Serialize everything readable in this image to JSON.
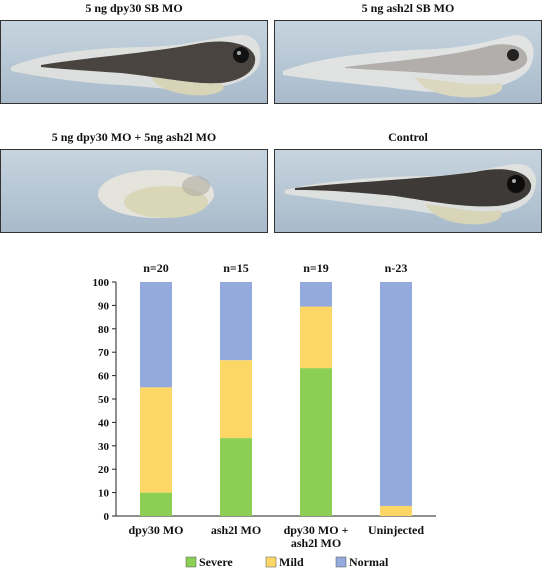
{
  "panels": [
    {
      "title": "5 ng dpy30 SB MO",
      "embryo": "tadpole-pigmented"
    },
    {
      "title": "5 ng ash2l SB MO",
      "embryo": "tadpole-pale"
    },
    {
      "title": "5 ng dpy30 MO + 5ng ash2l MO",
      "embryo": "round-embryo"
    },
    {
      "title": "Control",
      "embryo": "tadpole-normal"
    }
  ],
  "colors": {
    "severe": "#8ccf55",
    "mild": "#fdd766",
    "normal": "#94a9dc",
    "photo_background": "#bccbd8"
  },
  "chart_data": {
    "type": "bar",
    "stacked": true,
    "categories": [
      "dpy30 MO",
      "ash2l MO",
      "dpy30 MO + ash2l MO",
      "Uninjected"
    ],
    "category_lines": [
      [
        "dpy30 MO"
      ],
      [
        "ash2l MO"
      ],
      [
        "dpy30 MO +",
        "ash2l MO"
      ],
      [
        "Uninjected"
      ]
    ],
    "n_labels": [
      "n=20",
      "n=15",
      "n=19",
      "n-23"
    ],
    "series": [
      {
        "name": "Severe",
        "values": [
          10,
          33.3,
          63.2,
          0
        ]
      },
      {
        "name": "Mild",
        "values": [
          45,
          33.3,
          26.3,
          4.3
        ]
      },
      {
        "name": "Normal",
        "values": [
          45,
          33.4,
          10.5,
          95.7
        ]
      }
    ],
    "ylim": [
      0,
      100
    ],
    "yticks": [
      0,
      10,
      20,
      30,
      40,
      50,
      60,
      70,
      80,
      90,
      100
    ],
    "legend_position": "bottom",
    "grid": false
  }
}
